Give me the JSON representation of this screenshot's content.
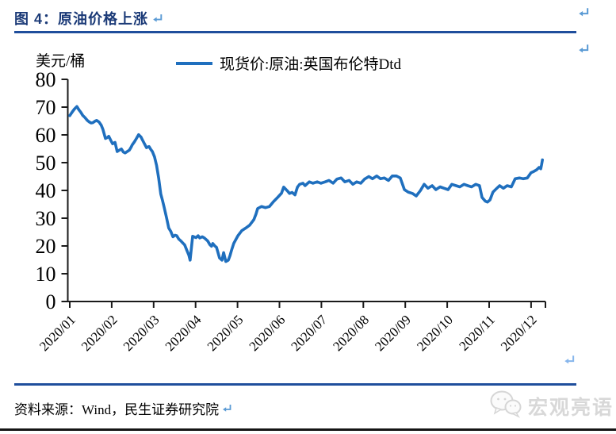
{
  "header": {
    "title": "图 4：原油价格上涨"
  },
  "icons": {
    "return_mark": "↵",
    "watermark_logo": "wechat-chat-bubbles"
  },
  "colors": {
    "line_blue": "#1f6fbe",
    "rule_blue": "#1f4e9c",
    "title_blue": "#1b3a77",
    "return_mark_blue": "#5b9bd5",
    "watermark_gray": "#d8d8d8",
    "axis_black": "#1a1a1a"
  },
  "chart_data": {
    "type": "line",
    "title": "图 4：原油价格上涨",
    "unit_label": "美元/桶",
    "legend": [
      "现货价:原油:英国布伦特Dtd"
    ],
    "legend_position": "top-center",
    "grid": false,
    "ylim": [
      0,
      80
    ],
    "y_ticks": [
      0,
      10,
      20,
      30,
      40,
      50,
      60,
      70,
      80
    ],
    "x_tick_labels": [
      "2020/01",
      "2020/02",
      "2020/03",
      "2020/04",
      "2020/05",
      "2020/06",
      "2020/07",
      "2020/08",
      "2020/09",
      "2020/10",
      "2020/11",
      "2020/12"
    ],
    "x_unit": "months after the 2020/01 tick",
    "line_color": "#1f6fbe",
    "axis_color": "#1a1a1a",
    "series": [
      {
        "name": "现货价:原油:英国布伦特Dtd",
        "points": [
          [
            0.0,
            66.9
          ],
          [
            0.06,
            68.3
          ],
          [
            0.11,
            69.3
          ],
          [
            0.17,
            70.2
          ],
          [
            0.22,
            69.0
          ],
          [
            0.26,
            68.2
          ],
          [
            0.31,
            67.0
          ],
          [
            0.36,
            66.3
          ],
          [
            0.42,
            65.2
          ],
          [
            0.47,
            64.6
          ],
          [
            0.51,
            64.3
          ],
          [
            0.55,
            64.4
          ],
          [
            0.6,
            64.9
          ],
          [
            0.64,
            65.2
          ],
          [
            0.7,
            64.6
          ],
          [
            0.75,
            63.5
          ],
          [
            0.79,
            62.0
          ],
          [
            0.85,
            58.7
          ],
          [
            0.89,
            59.0
          ],
          [
            0.93,
            59.5
          ],
          [
            0.98,
            58.0
          ],
          [
            1.02,
            56.8
          ],
          [
            1.08,
            57.3
          ],
          [
            1.13,
            54.0
          ],
          [
            1.18,
            54.5
          ],
          [
            1.23,
            54.9
          ],
          [
            1.28,
            53.8
          ],
          [
            1.32,
            53.5
          ],
          [
            1.37,
            54.0
          ],
          [
            1.42,
            54.5
          ],
          [
            1.46,
            55.5
          ],
          [
            1.49,
            56.4
          ],
          [
            1.54,
            57.5
          ],
          [
            1.59,
            58.7
          ],
          [
            1.64,
            60.1
          ],
          [
            1.7,
            59.2
          ],
          [
            1.74,
            58.0
          ],
          [
            1.78,
            56.8
          ],
          [
            1.83,
            55.4
          ],
          [
            1.86,
            55.6
          ],
          [
            1.89,
            55.8
          ],
          [
            1.93,
            54.8
          ],
          [
            1.97,
            54.0
          ],
          [
            2.02,
            52.1
          ],
          [
            2.07,
            49.0
          ],
          [
            2.12,
            44.5
          ],
          [
            2.17,
            38.7
          ],
          [
            2.21,
            36.5
          ],
          [
            2.25,
            34.0
          ],
          [
            2.31,
            30.0
          ],
          [
            2.36,
            26.5
          ],
          [
            2.41,
            25.2
          ],
          [
            2.46,
            23.3
          ],
          [
            2.51,
            23.9
          ],
          [
            2.55,
            23.7
          ],
          [
            2.6,
            22.5
          ],
          [
            2.65,
            21.8
          ],
          [
            2.7,
            21.0
          ],
          [
            2.74,
            20.4
          ],
          [
            2.79,
            18.5
          ],
          [
            2.84,
            16.7
          ],
          [
            2.87,
            14.9
          ],
          [
            2.93,
            23.5
          ],
          [
            3.01,
            23.0
          ],
          [
            3.06,
            23.7
          ],
          [
            3.1,
            22.9
          ],
          [
            3.16,
            23.3
          ],
          [
            3.21,
            22.9
          ],
          [
            3.29,
            21.8
          ],
          [
            3.34,
            20.5
          ],
          [
            3.38,
            19.9
          ],
          [
            3.41,
            20.9
          ],
          [
            3.46,
            20.0
          ],
          [
            3.5,
            19.5
          ],
          [
            3.57,
            15.7
          ],
          [
            3.63,
            14.9
          ],
          [
            3.67,
            17.6
          ],
          [
            3.72,
            14.4
          ],
          [
            3.78,
            14.9
          ],
          [
            3.82,
            16.5
          ],
          [
            3.86,
            18.6
          ],
          [
            3.91,
            20.9
          ],
          [
            3.96,
            22.3
          ],
          [
            4.01,
            23.7
          ],
          [
            4.1,
            25.5
          ],
          [
            4.2,
            26.5
          ],
          [
            4.29,
            27.5
          ],
          [
            4.39,
            29.5
          ],
          [
            4.44,
            31.5
          ],
          [
            4.48,
            33.5
          ],
          [
            4.57,
            34.2
          ],
          [
            4.67,
            33.8
          ],
          [
            4.76,
            34.2
          ],
          [
            4.86,
            36.0
          ],
          [
            4.95,
            37.4
          ],
          [
            5.05,
            39.0
          ],
          [
            5.1,
            41.2
          ],
          [
            5.19,
            39.8
          ],
          [
            5.24,
            38.9
          ],
          [
            5.3,
            39.3
          ],
          [
            5.37,
            38.4
          ],
          [
            5.43,
            41.2
          ],
          [
            5.48,
            42.2
          ],
          [
            5.56,
            42.6
          ],
          [
            5.61,
            41.7
          ],
          [
            5.71,
            43.1
          ],
          [
            5.8,
            42.6
          ],
          [
            5.9,
            43.1
          ],
          [
            5.99,
            42.6
          ],
          [
            6.09,
            43.1
          ],
          [
            6.18,
            43.6
          ],
          [
            6.28,
            42.6
          ],
          [
            6.37,
            44.1
          ],
          [
            6.47,
            44.5
          ],
          [
            6.56,
            43.1
          ],
          [
            6.66,
            43.6
          ],
          [
            6.75,
            42.2
          ],
          [
            6.84,
            43.1
          ],
          [
            6.94,
            42.6
          ],
          [
            7.03,
            44.1
          ],
          [
            7.13,
            45.0
          ],
          [
            7.22,
            44.2
          ],
          [
            7.32,
            45.2
          ],
          [
            7.41,
            44.2
          ],
          [
            7.5,
            44.5
          ],
          [
            7.6,
            43.6
          ],
          [
            7.69,
            45.2
          ],
          [
            7.79,
            45.2
          ],
          [
            7.88,
            44.5
          ],
          [
            7.98,
            40.3
          ],
          [
            8.07,
            39.4
          ],
          [
            8.17,
            38.9
          ],
          [
            8.26,
            38.0
          ],
          [
            8.36,
            39.9
          ],
          [
            8.45,
            42.2
          ],
          [
            8.54,
            40.8
          ],
          [
            8.64,
            41.7
          ],
          [
            8.73,
            40.3
          ],
          [
            8.83,
            41.3
          ],
          [
            8.92,
            40.8
          ],
          [
            9.02,
            40.3
          ],
          [
            9.11,
            42.2
          ],
          [
            9.21,
            41.7
          ],
          [
            9.3,
            41.3
          ],
          [
            9.4,
            42.2
          ],
          [
            9.49,
            41.7
          ],
          [
            9.58,
            41.3
          ],
          [
            9.68,
            42.2
          ],
          [
            9.77,
            41.7
          ],
          [
            9.83,
            37.5
          ],
          [
            9.91,
            36.1
          ],
          [
            9.96,
            35.8
          ],
          [
            10.02,
            36.6
          ],
          [
            10.09,
            39.4
          ],
          [
            10.15,
            40.3
          ],
          [
            10.25,
            41.7
          ],
          [
            10.34,
            40.8
          ],
          [
            10.43,
            41.7
          ],
          [
            10.53,
            41.3
          ],
          [
            10.62,
            44.2
          ],
          [
            10.72,
            44.5
          ],
          [
            10.81,
            44.2
          ],
          [
            10.91,
            44.5
          ],
          [
            11.0,
            46.4
          ],
          [
            11.06,
            46.8
          ],
          [
            11.13,
            47.4
          ],
          [
            11.19,
            48.3
          ],
          [
            11.23,
            47.8
          ],
          [
            11.25,
            49.2
          ],
          [
            11.27,
            51.0
          ]
        ]
      }
    ]
  },
  "footer": {
    "source": "资料来源：Wind，民生证券研究院"
  },
  "watermark": {
    "label": "宏观亮语"
  }
}
